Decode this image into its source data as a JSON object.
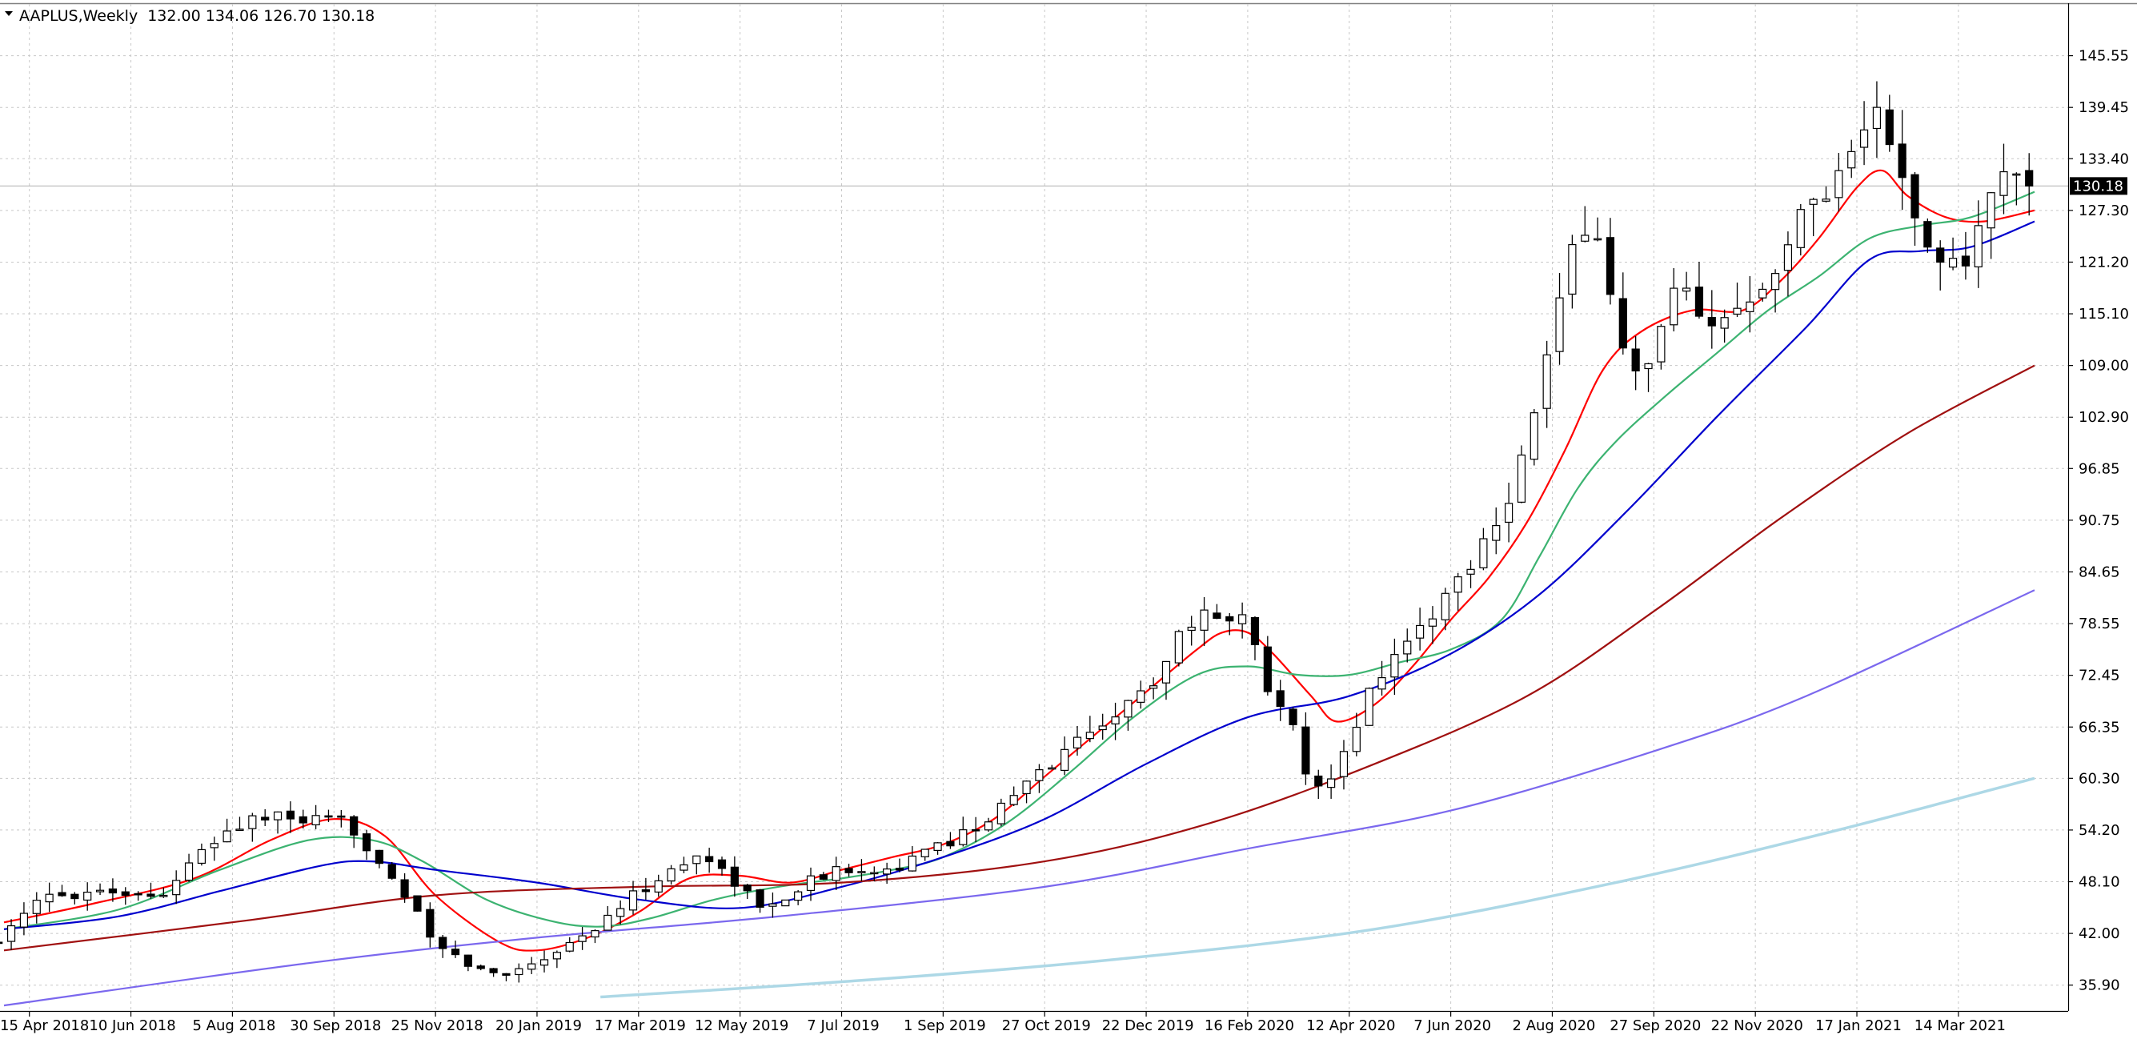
{
  "chart_data": {
    "type": "candlestick",
    "symbol": "AAPLUS",
    "timeframe": "Weekly",
    "title": "AAPLUS,Weekly",
    "header_ohlc": "132.00 134.06 126.70 130.18",
    "last_price": 130.18,
    "last_price_label": "130.18",
    "ylim": [
      32.85,
      151.65
    ],
    "grid": true,
    "x_date_range": [
      "2018-04-01",
      "2021-04-25"
    ],
    "y_ticks": [
      "145.55",
      "139.45",
      "133.40",
      "127.30",
      "121.20",
      "115.10",
      "109.00",
      "102.90",
      "96.85",
      "90.75",
      "84.65",
      "78.55",
      "72.45",
      "66.35",
      "60.30",
      "54.20",
      "48.10",
      "42.00",
      "35.90"
    ],
    "x_ticks": [
      {
        "date": "2018-04-15",
        "label": "15 Apr 2018"
      },
      {
        "date": "2018-06-10",
        "label": "10 Jun 2018"
      },
      {
        "date": "2018-08-05",
        "label": "5 Aug 2018"
      },
      {
        "date": "2018-09-30",
        "label": "30 Sep 2018"
      },
      {
        "date": "2018-11-25",
        "label": "25 Nov 2018"
      },
      {
        "date": "2019-01-20",
        "label": "20 Jan 2019"
      },
      {
        "date": "2019-03-17",
        "label": "17 Mar 2019"
      },
      {
        "date": "2019-05-12",
        "label": "12 May 2019"
      },
      {
        "date": "2019-07-07",
        "label": "7 Jul 2019"
      },
      {
        "date": "2019-09-01",
        "label": "1 Sep 2019"
      },
      {
        "date": "2019-10-27",
        "label": "27 Oct 2019"
      },
      {
        "date": "2019-12-22",
        "label": "22 Dec 2019"
      },
      {
        "date": "2020-02-16",
        "label": "16 Feb 2020"
      },
      {
        "date": "2020-04-12",
        "label": "12 Apr 2020"
      },
      {
        "date": "2020-06-07",
        "label": "7 Jun 2020"
      },
      {
        "date": "2020-08-02",
        "label": "2 Aug 2020"
      },
      {
        "date": "2020-09-27",
        "label": "27 Sep 2020"
      },
      {
        "date": "2020-11-22",
        "label": "22 Nov 2020"
      },
      {
        "date": "2021-01-17",
        "label": "17 Jan 2021"
      },
      {
        "date": "2021-03-14",
        "label": "14 Mar 2021"
      }
    ],
    "anchors": [
      {
        "date": "2018-04-01",
        "close": 41.5
      },
      {
        "date": "2018-04-22",
        "close": 46.2
      },
      {
        "date": "2018-05-27",
        "close": 47.3
      },
      {
        "date": "2018-06-24",
        "close": 46.2
      },
      {
        "date": "2018-07-29",
        "close": 53.5
      },
      {
        "date": "2018-08-19",
        "close": 55.8
      },
      {
        "date": "2018-09-16",
        "close": 55.2
      },
      {
        "date": "2018-10-07",
        "close": 55.0
      },
      {
        "date": "2018-10-28",
        "close": 50.0
      },
      {
        "date": "2018-11-11",
        "close": 45.5
      },
      {
        "date": "2018-11-25",
        "close": 40.5
      },
      {
        "date": "2018-12-16",
        "close": 38.0
      },
      {
        "date": "2018-12-30",
        "close": 37.0
      },
      {
        "date": "2019-01-27",
        "close": 39.5
      },
      {
        "date": "2019-02-24",
        "close": 43.0
      },
      {
        "date": "2019-03-17",
        "close": 47.0
      },
      {
        "date": "2019-04-21",
        "close": 51.5
      },
      {
        "date": "2019-05-05",
        "close": 49.0
      },
      {
        "date": "2019-05-26",
        "close": 44.5
      },
      {
        "date": "2019-06-16",
        "close": 48.0
      },
      {
        "date": "2019-07-14",
        "close": 50.0
      },
      {
        "date": "2019-08-04",
        "close": 49.5
      },
      {
        "date": "2019-09-01",
        "close": 52.5
      },
      {
        "date": "2019-09-29",
        "close": 56.0
      },
      {
        "date": "2019-10-27",
        "close": 61.5
      },
      {
        "date": "2019-11-24",
        "close": 66.5
      },
      {
        "date": "2019-12-22",
        "close": 70.5
      },
      {
        "date": "2020-01-12",
        "close": 78.5
      },
      {
        "date": "2020-02-02",
        "close": 80.0
      },
      {
        "date": "2020-02-16",
        "close": 79.0
      },
      {
        "date": "2020-02-23",
        "close": 72.5
      },
      {
        "date": "2020-03-08",
        "close": 69.0
      },
      {
        "date": "2020-03-22",
        "close": 58.0
      },
      {
        "date": "2020-04-05",
        "close": 60.5
      },
      {
        "date": "2020-04-19",
        "close": 69.0
      },
      {
        "date": "2020-05-03",
        "close": 74.0
      },
      {
        "date": "2020-05-31",
        "close": 80.5
      },
      {
        "date": "2020-06-21",
        "close": 87.0
      },
      {
        "date": "2020-07-12",
        "close": 95.0
      },
      {
        "date": "2020-07-26",
        "close": 106.0
      },
      {
        "date": "2020-08-09",
        "close": 119.0
      },
      {
        "date": "2020-08-23",
        "close": 128.0
      },
      {
        "date": "2020-09-06",
        "close": 114.0
      },
      {
        "date": "2020-09-20",
        "close": 106.0
      },
      {
        "date": "2020-10-11",
        "close": 119.0
      },
      {
        "date": "2020-10-25",
        "close": 112.0
      },
      {
        "date": "2020-11-15",
        "close": 117.0
      },
      {
        "date": "2020-12-06",
        "close": 122.0
      },
      {
        "date": "2020-12-20",
        "close": 128.0
      },
      {
        "date": "2021-01-03",
        "close": 131.0
      },
      {
        "date": "2021-01-17",
        "close": 135.0
      },
      {
        "date": "2021-01-24",
        "close": 140.0
      },
      {
        "date": "2021-02-07",
        "close": 134.0
      },
      {
        "date": "2021-02-21",
        "close": 123.0
      },
      {
        "date": "2021-03-07",
        "close": 121.0
      },
      {
        "date": "2021-03-21",
        "close": 122.0
      },
      {
        "date": "2021-04-04",
        "close": 130.5
      },
      {
        "date": "2021-04-18",
        "close": 134.0
      },
      {
        "date": "2021-04-25",
        "close": 130.18
      }
    ],
    "series": [
      {
        "label": "Weekly candlesticks",
        "kind": "candles",
        "color_up": "#ffffff",
        "color_down": "#000000",
        "outline": "#000000"
      },
      {
        "label": "Moving average (red)",
        "kind": "ma",
        "color": "#ff0000",
        "width": 2.2,
        "points": [
          {
            "date": "2018-04-01",
            "value": 43.3
          },
          {
            "date": "2018-05-20",
            "value": 45.5
          },
          {
            "date": "2018-07-15",
            "value": 48.5
          },
          {
            "date": "2018-08-26",
            "value": 53.0
          },
          {
            "date": "2018-09-30",
            "value": 55.5
          },
          {
            "date": "2018-10-28",
            "value": 53.5
          },
          {
            "date": "2018-11-25",
            "value": 46.5
          },
          {
            "date": "2018-12-30",
            "value": 41.0
          },
          {
            "date": "2019-01-20",
            "value": 40.0
          },
          {
            "date": "2019-02-17",
            "value": 41.5
          },
          {
            "date": "2019-03-17",
            "value": 44.5
          },
          {
            "date": "2019-04-14",
            "value": 48.5
          },
          {
            "date": "2019-05-12",
            "value": 48.8
          },
          {
            "date": "2019-06-09",
            "value": 48.0
          },
          {
            "date": "2019-07-07",
            "value": 49.5
          },
          {
            "date": "2019-08-04",
            "value": 51.0
          },
          {
            "date": "2019-09-01",
            "value": 52.5
          },
          {
            "date": "2019-09-29",
            "value": 55.5
          },
          {
            "date": "2019-10-27",
            "value": 60.5
          },
          {
            "date": "2019-11-24",
            "value": 65.5
          },
          {
            "date": "2019-12-22",
            "value": 70.5
          },
          {
            "date": "2020-01-19",
            "value": 75.5
          },
          {
            "date": "2020-02-02",
            "value": 77.5
          },
          {
            "date": "2020-02-16",
            "value": 77.5
          },
          {
            "date": "2020-03-01",
            "value": 75.0
          },
          {
            "date": "2020-03-22",
            "value": 70.0
          },
          {
            "date": "2020-04-05",
            "value": 67.0
          },
          {
            "date": "2020-04-26",
            "value": 69.0
          },
          {
            "date": "2020-05-17",
            "value": 73.5
          },
          {
            "date": "2020-06-07",
            "value": 79.0
          },
          {
            "date": "2020-06-28",
            "value": 84.0
          },
          {
            "date": "2020-07-19",
            "value": 90.5
          },
          {
            "date": "2020-08-09",
            "value": 99.0
          },
          {
            "date": "2020-08-30",
            "value": 108.5
          },
          {
            "date": "2020-09-20",
            "value": 113.0
          },
          {
            "date": "2020-10-18",
            "value": 115.5
          },
          {
            "date": "2020-11-15",
            "value": 115.5
          },
          {
            "date": "2020-12-06",
            "value": 119.0
          },
          {
            "date": "2020-12-27",
            "value": 124.0
          },
          {
            "date": "2021-01-17",
            "value": 130.0
          },
          {
            "date": "2021-01-31",
            "value": 132.0
          },
          {
            "date": "2021-02-14",
            "value": 129.0
          },
          {
            "date": "2021-03-07",
            "value": 126.5
          },
          {
            "date": "2021-03-28",
            "value": 126.0
          },
          {
            "date": "2021-04-25",
            "value": 127.3
          }
        ]
      },
      {
        "label": "Moving average (green)",
        "kind": "ma",
        "color": "#3cb371",
        "width": 2.2,
        "points": [
          {
            "date": "2018-04-01",
            "value": 42.5
          },
          {
            "date": "2018-06-03",
            "value": 44.8
          },
          {
            "date": "2018-07-29",
            "value": 49.5
          },
          {
            "date": "2018-09-16",
            "value": 53.0
          },
          {
            "date": "2018-10-21",
            "value": 53.0
          },
          {
            "date": "2018-11-18",
            "value": 50.5
          },
          {
            "date": "2018-12-23",
            "value": 46.0
          },
          {
            "date": "2019-01-27",
            "value": 43.5
          },
          {
            "date": "2019-02-24",
            "value": 42.8
          },
          {
            "date": "2019-03-24",
            "value": 43.8
          },
          {
            "date": "2019-04-28",
            "value": 46.0
          },
          {
            "date": "2019-06-02",
            "value": 47.5
          },
          {
            "date": "2019-07-07",
            "value": 48.5
          },
          {
            "date": "2019-08-04",
            "value": 49.5
          },
          {
            "date": "2019-09-01",
            "value": 51.0
          },
          {
            "date": "2019-10-06",
            "value": 55.0
          },
          {
            "date": "2019-11-10",
            "value": 61.0
          },
          {
            "date": "2019-12-15",
            "value": 67.5
          },
          {
            "date": "2020-01-19",
            "value": 72.5
          },
          {
            "date": "2020-02-16",
            "value": 73.5
          },
          {
            "date": "2020-03-15",
            "value": 72.5
          },
          {
            "date": "2020-04-12",
            "value": 72.5
          },
          {
            "date": "2020-05-10",
            "value": 74.0
          },
          {
            "date": "2020-06-07",
            "value": 75.5
          },
          {
            "date": "2020-07-05",
            "value": 79.0
          },
          {
            "date": "2020-07-26",
            "value": 86.5
          },
          {
            "date": "2020-08-16",
            "value": 94.5
          },
          {
            "date": "2020-09-06",
            "value": 100.0
          },
          {
            "date": "2020-10-04",
            "value": 105.5
          },
          {
            "date": "2020-11-01",
            "value": 110.5
          },
          {
            "date": "2020-11-29",
            "value": 115.5
          },
          {
            "date": "2020-12-27",
            "value": 119.5
          },
          {
            "date": "2021-01-24",
            "value": 124.0
          },
          {
            "date": "2021-02-21",
            "value": 125.5
          },
          {
            "date": "2021-03-21",
            "value": 126.5
          },
          {
            "date": "2021-04-25",
            "value": 129.5
          }
        ]
      },
      {
        "label": "Moving average (blue)",
        "kind": "ma",
        "color": "#0000cd",
        "width": 2.2,
        "points": [
          {
            "date": "2018-04-01",
            "value": 42.5
          },
          {
            "date": "2018-06-03",
            "value": 44.0
          },
          {
            "date": "2018-07-29",
            "value": 47.0
          },
          {
            "date": "2018-09-23",
            "value": 50.0
          },
          {
            "date": "2018-10-21",
            "value": 50.5
          },
          {
            "date": "2018-11-25",
            "value": 49.5
          },
          {
            "date": "2019-01-20",
            "value": 48.0
          },
          {
            "date": "2019-03-17",
            "value": 46.0
          },
          {
            "date": "2019-05-12",
            "value": 45.0
          },
          {
            "date": "2019-07-07",
            "value": 47.5
          },
          {
            "date": "2019-09-01",
            "value": 51.0
          },
          {
            "date": "2019-10-27",
            "value": 55.5
          },
          {
            "date": "2019-12-22",
            "value": 62.0
          },
          {
            "date": "2020-02-16",
            "value": 67.5
          },
          {
            "date": "2020-04-12",
            "value": 70.0
          },
          {
            "date": "2020-06-07",
            "value": 75.0
          },
          {
            "date": "2020-07-26",
            "value": 82.0
          },
          {
            "date": "2020-09-13",
            "value": 92.0
          },
          {
            "date": "2020-11-01",
            "value": 103.0
          },
          {
            "date": "2020-12-20",
            "value": 113.5
          },
          {
            "date": "2021-01-24",
            "value": 121.5
          },
          {
            "date": "2021-02-21",
            "value": 122.5
          },
          {
            "date": "2021-03-21",
            "value": 123.0
          },
          {
            "date": "2021-04-25",
            "value": 126.0
          }
        ]
      },
      {
        "label": "Moving average (dark red)",
        "kind": "ma",
        "color": "#a01010",
        "width": 2.2,
        "points": [
          {
            "date": "2018-04-01",
            "value": 40.0
          },
          {
            "date": "2018-08-12",
            "value": 43.5
          },
          {
            "date": "2018-11-25",
            "value": 46.5
          },
          {
            "date": "2019-03-17",
            "value": 47.5
          },
          {
            "date": "2019-07-07",
            "value": 48.0
          },
          {
            "date": "2019-10-27",
            "value": 50.5
          },
          {
            "date": "2020-01-26",
            "value": 55.0
          },
          {
            "date": "2020-04-26",
            "value": 62.0
          },
          {
            "date": "2020-07-19",
            "value": 70.0
          },
          {
            "date": "2020-09-27",
            "value": 80.0
          },
          {
            "date": "2020-12-06",
            "value": 91.0
          },
          {
            "date": "2021-02-14",
            "value": 101.0
          },
          {
            "date": "2021-04-25",
            "value": 109.0
          }
        ]
      },
      {
        "label": "Moving average (purple)",
        "kind": "ma",
        "color": "#7b68ee",
        "width": 2.2,
        "points": [
          {
            "date": "2018-04-01",
            "value": 33.5
          },
          {
            "date": "2018-09-16",
            "value": 38.5
          },
          {
            "date": "2019-01-20",
            "value": 41.5
          },
          {
            "date": "2019-06-02",
            "value": 44.0
          },
          {
            "date": "2019-10-27",
            "value": 47.5
          },
          {
            "date": "2020-02-16",
            "value": 52.0
          },
          {
            "date": "2020-06-07",
            "value": 56.5
          },
          {
            "date": "2020-09-27",
            "value": 63.5
          },
          {
            "date": "2020-12-20",
            "value": 70.0
          },
          {
            "date": "2021-04-25",
            "value": 82.5
          }
        ]
      },
      {
        "label": "Moving average (light blue)",
        "kind": "ma",
        "color": "#add8e6",
        "width": 3.5,
        "points": [
          {
            "date": "2019-02-24",
            "value": 34.5
          },
          {
            "date": "2019-07-21",
            "value": 36.5
          },
          {
            "date": "2019-12-08",
            "value": 39.0
          },
          {
            "date": "2020-04-26",
            "value": 42.5
          },
          {
            "date": "2020-09-06",
            "value": 48.0
          },
          {
            "date": "2021-01-03",
            "value": 54.0
          },
          {
            "date": "2021-04-25",
            "value": 60.3
          }
        ]
      }
    ]
  }
}
